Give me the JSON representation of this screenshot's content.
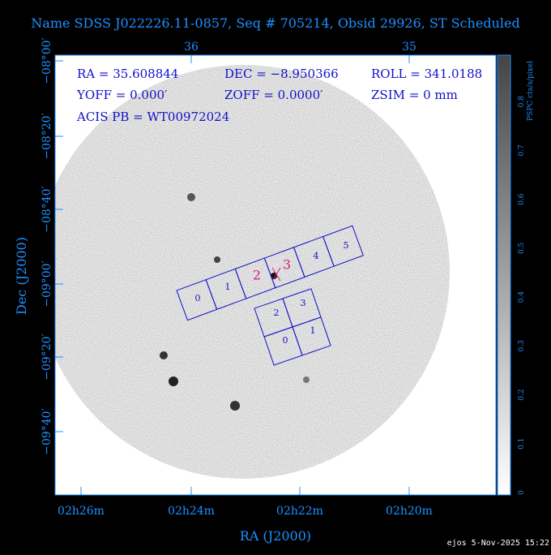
{
  "header": {
    "title": "Name SDSS J022226.11-0857, Seq # 705214, Obsid 29926, ST Scheduled"
  },
  "axes": {
    "top_ticks": [
      "36",
      "35"
    ],
    "left_ticks": [
      "−08°00′",
      "−08°20′",
      "−08°40′",
      "−09°00′",
      "−09°20′",
      "−09°40′"
    ],
    "bottom_ticks": [
      "02h26m",
      "02h24m",
      "02h22m",
      "02h20m"
    ],
    "y_label": "Dec (J2000)",
    "x_label": "RA (J2000)"
  },
  "info": {
    "ra": "RA = 35.608844",
    "dec": "DEC = −8.950366",
    "roll": "ROLL = 341.0188",
    "yoff": "YOFF =   0.000′",
    "zoff": "ZOFF =  0.0000′",
    "zsim": "ZSIM = 0 mm",
    "acis": "ACIS PB = WT00972024"
  },
  "colorbar": {
    "label": "PSPC cts/s/pixel",
    "ticks": [
      "0",
      "0.1",
      "0.2",
      "0.3",
      "0.4",
      "0.5",
      "0.6",
      "0.7",
      "0.8"
    ]
  },
  "chips": {
    "s_array": [
      "0",
      "1",
      "2",
      "3",
      "4",
      "5"
    ],
    "i_array": [
      "2",
      "3",
      "0",
      "1"
    ]
  },
  "footer": {
    "stamp": "ejos  5-Nov-2025 15:22"
  }
}
